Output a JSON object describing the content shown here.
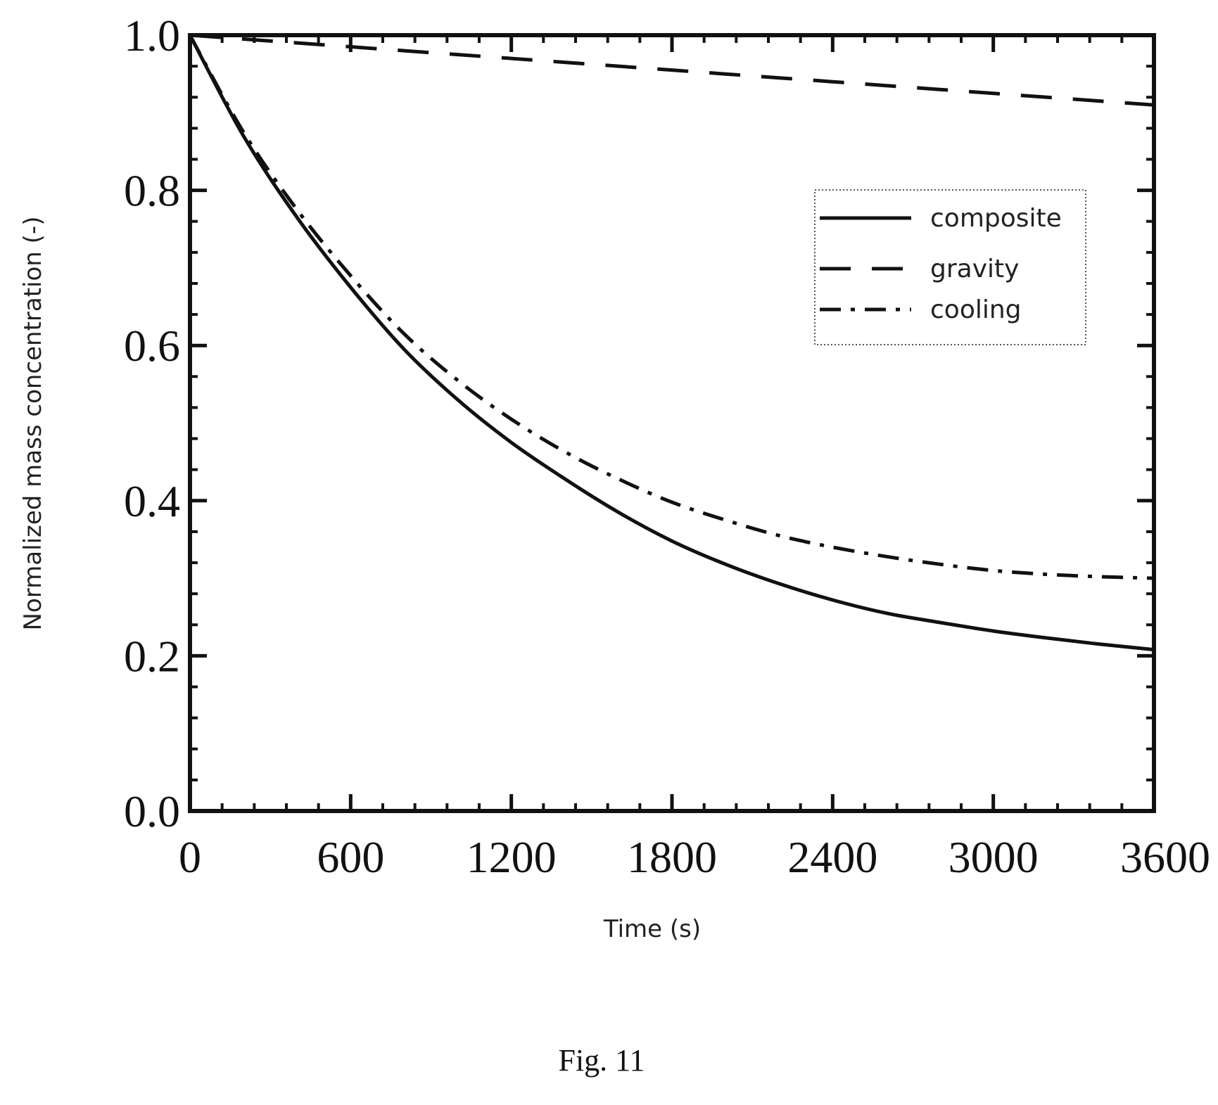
{
  "chart_data": {
    "type": "line",
    "xlabel": "Time (s)",
    "ylabel": "Normalized mass concentration  (-)",
    "xlim": [
      0,
      3600
    ],
    "ylim": [
      0,
      1
    ],
    "xticks": [
      "0",
      "600",
      "1200",
      "1800",
      "2400",
      "3000",
      "3600"
    ],
    "yticks": [
      "0.0",
      "0.2",
      "0.4",
      "0.6",
      "0.8",
      "1.0"
    ],
    "grid": false,
    "legend": "upper-right",
    "x": [
      0,
      200,
      400,
      600,
      800,
      1000,
      1200,
      1400,
      1600,
      1800,
      2000,
      2200,
      2400,
      2600,
      2800,
      3000,
      3200,
      3400,
      3600
    ],
    "series": [
      {
        "name": "composite",
        "style": "solid",
        "values": [
          1.0,
          0.87,
          0.765,
          0.675,
          0.595,
          0.53,
          0.475,
          0.428,
          0.385,
          0.348,
          0.318,
          0.293,
          0.272,
          0.255,
          0.243,
          0.232,
          0.223,
          0.215,
          0.208
        ]
      },
      {
        "name": "gravity",
        "style": "dashed",
        "values": [
          1.0,
          0.995,
          0.99,
          0.985,
          0.98,
          0.975,
          0.97,
          0.965,
          0.96,
          0.955,
          0.95,
          0.945,
          0.94,
          0.935,
          0.93,
          0.925,
          0.92,
          0.915,
          0.91
        ]
      },
      {
        "name": "cooling",
        "style": "dash-dot",
        "values": [
          1.0,
          0.875,
          0.775,
          0.69,
          0.615,
          0.555,
          0.505,
          0.463,
          0.428,
          0.398,
          0.375,
          0.355,
          0.34,
          0.328,
          0.318,
          0.31,
          0.305,
          0.302,
          0.3
        ]
      }
    ]
  },
  "caption": "Fig. 11"
}
